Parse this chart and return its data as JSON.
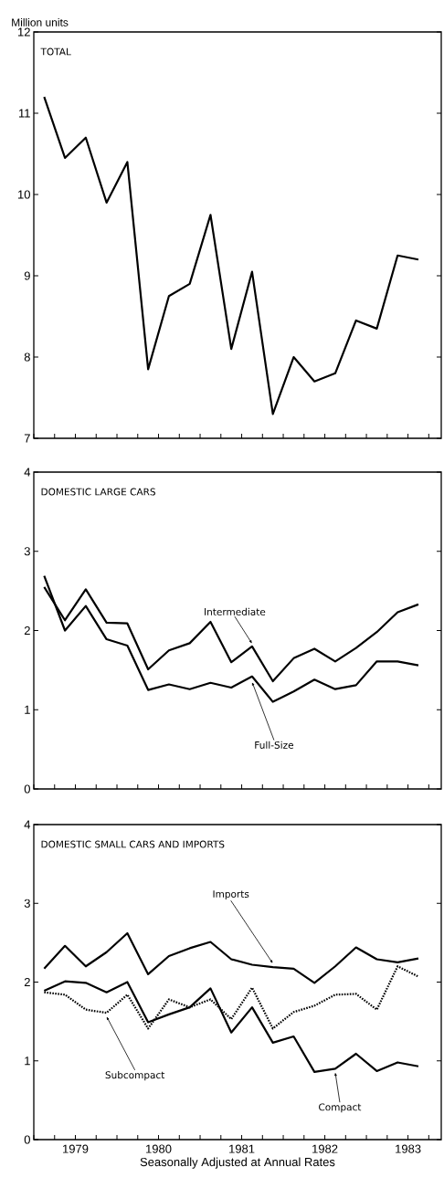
{
  "chart_data": [
    {
      "type": "line",
      "title": "TOTAL",
      "ylabel": "Million units",
      "x": [
        1979.125,
        1979.375,
        1979.625,
        1979.875,
        1980.125,
        1980.375,
        1980.625,
        1980.875,
        1981.125,
        1981.375,
        1981.625,
        1981.875,
        1982.125,
        1982.375,
        1982.625,
        1982.875,
        1983.125,
        1983.375,
        1983.625
      ],
      "series": [
        {
          "color": "#000000",
          "line_style": "solid",
          "values": [
            11.2,
            10.45,
            10.7,
            9.9,
            10.4,
            7.85,
            8.75,
            8.9,
            9.75,
            8.1,
            9.05,
            7.3,
            8.0,
            7.7,
            7.8,
            8.45,
            8.35,
            9.25,
            9.2
          ]
        }
      ],
      "xlim": [
        1979,
        1983.9
      ],
      "ylim": [
        7,
        12
      ],
      "yticks": [
        7,
        8,
        9,
        10,
        11,
        12
      ],
      "xticks": [
        {
          "value": 1979,
          "label": null
        },
        {
          "value": 1979.25,
          "label": null
        },
        {
          "value": 1979.5,
          "label": null
        },
        {
          "value": 1979.75,
          "label": null
        },
        {
          "value": 1980,
          "label": null
        },
        {
          "value": 1980.25,
          "label": null
        },
        {
          "value": 1980.5,
          "label": null
        },
        {
          "value": 1980.75,
          "label": null
        },
        {
          "value": 1981,
          "label": null
        },
        {
          "value": 1981.25,
          "label": null
        },
        {
          "value": 1981.5,
          "label": null
        },
        {
          "value": 1981.75,
          "label": null
        },
        {
          "value": 1982,
          "label": null
        },
        {
          "value": 1982.25,
          "label": null
        },
        {
          "value": 1982.5,
          "label": null
        },
        {
          "value": 1982.75,
          "label": null
        },
        {
          "value": 1983,
          "label": null
        },
        {
          "value": 1983.25,
          "label": null
        },
        {
          "value": 1983.5,
          "label": null
        },
        {
          "value": 1983.75,
          "label": null
        }
      ],
      "tick_labels": "y"
    },
    {
      "type": "line",
      "title": "DOMESTIC LARGE CARS",
      "x": [
        1979.125,
        1979.375,
        1979.625,
        1979.875,
        1980.125,
        1980.375,
        1980.625,
        1980.875,
        1981.125,
        1981.375,
        1981.625,
        1981.875,
        1982.125,
        1982.375,
        1982.625,
        1982.875,
        1983.125,
        1983.375,
        1983.625
      ],
      "series": [
        {
          "name": "Intermediate",
          "color": "#000000",
          "line_style": "solid",
          "values": [
            2.55,
            2.13,
            2.52,
            2.1,
            2.09,
            1.51,
            1.75,
            1.84,
            2.11,
            1.6,
            1.8,
            1.36,
            1.65,
            1.77,
            1.61,
            1.78,
            1.98,
            2.23,
            2.33
          ]
        },
        {
          "name": "Full-Size",
          "color": "#000000",
          "line_style": "solid",
          "values": [
            2.69,
            2.0,
            2.31,
            1.89,
            1.81,
            1.25,
            1.32,
            1.26,
            1.34,
            1.28,
            1.42,
            1.1,
            1.23,
            1.38,
            1.26,
            1.31,
            1.61,
            1.61,
            1.56
          ]
        }
      ],
      "xlim": [
        1979,
        1983.9
      ],
      "ylim": [
        0,
        4
      ],
      "yticks": [
        0,
        1,
        2,
        3,
        4
      ],
      "xticks": [
        {
          "value": 1979,
          "label": null
        },
        {
          "value": 1979.25,
          "label": null
        },
        {
          "value": 1979.5,
          "label": null
        },
        {
          "value": 1979.75,
          "label": null
        },
        {
          "value": 1980,
          "label": null
        },
        {
          "value": 1980.25,
          "label": null
        },
        {
          "value": 1980.5,
          "label": null
        },
        {
          "value": 1980.75,
          "label": null
        },
        {
          "value": 1981,
          "label": null
        },
        {
          "value": 1981.25,
          "label": null
        },
        {
          "value": 1981.5,
          "label": null
        },
        {
          "value": 1981.75,
          "label": null
        },
        {
          "value": 1982,
          "label": null
        },
        {
          "value": 1982.25,
          "label": null
        },
        {
          "value": 1982.5,
          "label": null
        },
        {
          "value": 1982.75,
          "label": null
        },
        {
          "value": 1983,
          "label": null
        },
        {
          "value": 1983.25,
          "label": null
        },
        {
          "value": 1983.5,
          "label": null
        },
        {
          "value": 1983.75,
          "label": null
        }
      ],
      "tick_labels": "y"
    },
    {
      "type": "line",
      "title": "DOMESTIC SMALL CARS AND IMPORTS",
      "xlabel": "Seasonally Adjusted at Annual Rates",
      "x": [
        1979.125,
        1979.375,
        1979.625,
        1979.875,
        1980.125,
        1980.375,
        1980.625,
        1980.875,
        1981.125,
        1981.375,
        1981.625,
        1981.875,
        1982.125,
        1982.375,
        1982.625,
        1982.875,
        1983.125,
        1983.375,
        1983.625
      ],
      "series": [
        {
          "name": "Imports",
          "color": "#000000",
          "line_style": "solid",
          "values": [
            2.17,
            2.46,
            2.2,
            2.38,
            2.62,
            2.1,
            2.33,
            2.43,
            2.51,
            2.29,
            2.22,
            2.19,
            2.17,
            1.99,
            2.2,
            2.44,
            2.29,
            2.25,
            2.3
          ]
        },
        {
          "name": "Compact",
          "color": "#000000",
          "line_style": "solid",
          "values": [
            1.89,
            2.01,
            1.99,
            1.87,
            2.0,
            1.49,
            1.59,
            1.68,
            1.92,
            1.36,
            1.68,
            1.23,
            1.31,
            0.86,
            0.9,
            1.09,
            0.87,
            0.98,
            0.93
          ]
        },
        {
          "name": "Subcompact",
          "color": "#000000",
          "line_style": "dotted",
          "values": [
            1.87,
            1.84,
            1.65,
            1.61,
            1.84,
            1.41,
            1.78,
            1.68,
            1.78,
            1.53,
            1.93,
            1.41,
            1.62,
            1.7,
            1.84,
            1.85,
            1.65,
            2.2,
            2.07
          ]
        }
      ],
      "xlim": [
        1979,
        1983.9
      ],
      "ylim": [
        0,
        4
      ],
      "yticks": [
        0,
        1,
        2,
        3,
        4
      ],
      "xticks": [
        {
          "value": 1979,
          "label": null
        },
        {
          "value": 1979.25,
          "label": null
        },
        {
          "value": 1979.5,
          "label": "1979"
        },
        {
          "value": 1979.75,
          "label": null
        },
        {
          "value": 1980,
          "label": null
        },
        {
          "value": 1980.25,
          "label": null
        },
        {
          "value": 1980.5,
          "label": "1980"
        },
        {
          "value": 1980.75,
          "label": null
        },
        {
          "value": 1981,
          "label": null
        },
        {
          "value": 1981.25,
          "label": null
        },
        {
          "value": 1981.5,
          "label": "1981"
        },
        {
          "value": 1981.75,
          "label": null
        },
        {
          "value": 1982,
          "label": null
        },
        {
          "value": 1982.25,
          "label": null
        },
        {
          "value": 1982.5,
          "label": "1982"
        },
        {
          "value": 1982.75,
          "label": null
        },
        {
          "value": 1983,
          "label": null
        },
        {
          "value": 1983.25,
          "label": null
        },
        {
          "value": 1983.5,
          "label": "1983"
        },
        {
          "value": 1983.75,
          "label": null
        }
      ]
    }
  ]
}
